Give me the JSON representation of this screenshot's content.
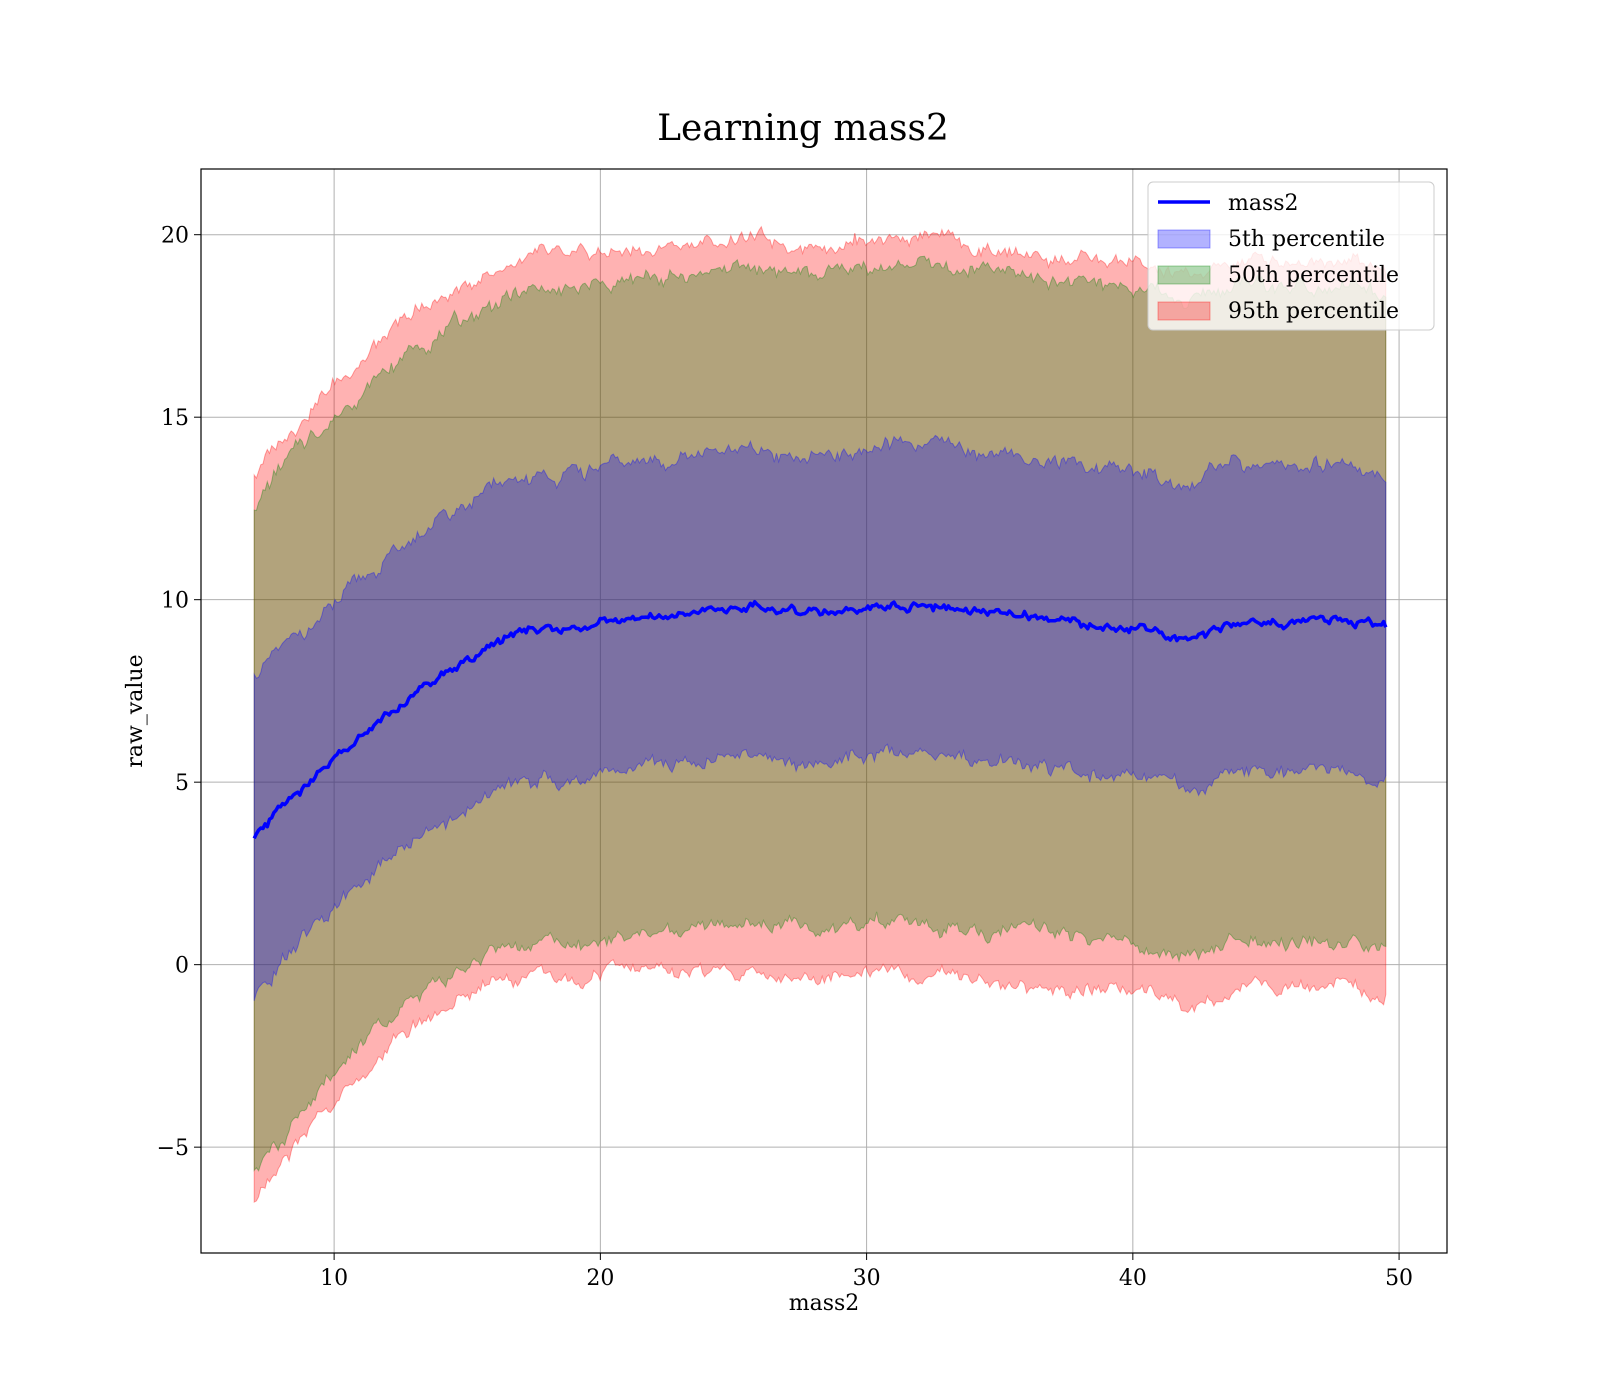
{
  "chart_data": {
    "type": "line",
    "title": "Learning mass2",
    "xlabel": "mass2",
    "ylabel": "raw_value",
    "xlim": [
      5,
      51.8
    ],
    "ylim": [
      -7.9,
      21.8
    ],
    "x_ticks": [
      10,
      20,
      30,
      40,
      50
    ],
    "x_tick_labels": [
      "10",
      "20",
      "30",
      "40",
      "50"
    ],
    "y_ticks": [
      -5,
      0,
      5,
      10,
      15,
      20
    ],
    "y_tick_labels": [
      "−5",
      "0",
      "5",
      "10",
      "15",
      "20"
    ],
    "grid": true,
    "legend_position": "top-right",
    "x_range": [
      7,
      49.5
    ],
    "series": [
      {
        "name": "mass2",
        "kind": "line",
        "color": "#0000ff",
        "x": [
          7,
          8,
          9,
          10,
          11,
          12,
          13,
          14,
          15,
          16,
          17,
          18,
          19,
          20,
          22,
          24,
          26,
          28,
          30,
          32,
          34,
          36,
          38,
          40,
          42,
          44,
          46,
          48,
          49.5
        ],
        "y": [
          3.5,
          4.3,
          5.0,
          5.6,
          6.3,
          6.9,
          7.4,
          7.9,
          8.4,
          8.8,
          9.1,
          9.2,
          9.1,
          9.4,
          9.6,
          9.7,
          9.8,
          9.6,
          9.8,
          9.9,
          9.7,
          9.6,
          9.4,
          9.3,
          8.9,
          9.4,
          9.4,
          9.5,
          9.2
        ]
      },
      {
        "name": "5th percentile",
        "kind": "band",
        "color": "#0000ff",
        "x": [
          7,
          8,
          9,
          10,
          11,
          12,
          13,
          14,
          15,
          16,
          17,
          18,
          19,
          20,
          22,
          24,
          26,
          28,
          30,
          32,
          34,
          36,
          38,
          40,
          42,
          44,
          46,
          48,
          49.5
        ],
        "lower": [
          -1.0,
          0.0,
          0.8,
          1.5,
          2.2,
          2.9,
          3.4,
          3.9,
          4.3,
          4.7,
          5.0,
          5.1,
          5.0,
          5.3,
          5.5,
          5.6,
          5.7,
          5.5,
          5.7,
          5.8,
          5.6,
          5.5,
          5.3,
          5.2,
          4.8,
          5.3,
          5.2,
          5.3,
          5.0
        ],
        "upper": [
          7.9,
          8.6,
          9.2,
          9.8,
          10.5,
          11.1,
          11.7,
          12.2,
          12.6,
          13.0,
          13.3,
          13.4,
          13.4,
          13.6,
          13.8,
          14.0,
          14.0,
          13.9,
          14.1,
          14.2,
          14.0,
          13.9,
          13.7,
          13.6,
          13.2,
          13.7,
          13.7,
          13.8,
          13.4
        ]
      },
      {
        "name": "50th percentile",
        "kind": "band",
        "color": "#008000",
        "x": [
          7,
          8,
          9,
          10,
          11,
          12,
          13,
          14,
          15,
          16,
          17,
          18,
          19,
          20,
          22,
          24,
          26,
          28,
          30,
          32,
          34,
          36,
          38,
          40,
          42,
          44,
          46,
          48,
          49.5
        ],
        "lower": [
          -5.8,
          -4.8,
          -3.8,
          -3.0,
          -2.2,
          -1.5,
          -0.9,
          -0.4,
          0.0,
          0.3,
          0.5,
          0.6,
          0.5,
          0.7,
          0.9,
          1.0,
          1.1,
          0.9,
          1.1,
          1.2,
          1.0,
          0.9,
          0.7,
          0.6,
          0.2,
          0.7,
          0.6,
          0.7,
          0.4
        ],
        "upper": [
          12.6,
          13.6,
          14.4,
          15.0,
          15.7,
          16.3,
          16.9,
          17.3,
          17.7,
          18.1,
          18.4,
          18.5,
          18.4,
          18.6,
          18.8,
          19.0,
          19.1,
          18.9,
          19.1,
          19.2,
          19.0,
          18.9,
          18.7,
          18.6,
          18.2,
          18.7,
          18.6,
          18.7,
          18.3
        ]
      },
      {
        "name": "95th percentile",
        "kind": "band",
        "color": "#ff0000",
        "x": [
          7,
          8,
          9,
          10,
          11,
          12,
          13,
          14,
          15,
          16,
          17,
          18,
          19,
          20,
          22,
          24,
          26,
          28,
          30,
          32,
          34,
          36,
          38,
          40,
          42,
          44,
          46,
          48,
          49.5
        ],
        "lower": [
          -6.5,
          -5.5,
          -4.5,
          -3.8,
          -3.0,
          -2.3,
          -1.7,
          -1.2,
          -0.8,
          -0.5,
          -0.3,
          -0.3,
          -0.4,
          -0.2,
          -0.1,
          -0.2,
          -0.3,
          -0.4,
          -0.1,
          -0.2,
          -0.4,
          -0.6,
          -0.7,
          -0.6,
          -1.1,
          -0.6,
          -0.5,
          -0.6,
          -0.9
        ],
        "upper": [
          13.4,
          14.4,
          15.2,
          15.9,
          16.6,
          17.2,
          17.8,
          18.2,
          18.6,
          19.0,
          19.3,
          19.4,
          19.3,
          19.5,
          19.6,
          19.8,
          19.9,
          19.7,
          19.9,
          20.0,
          19.6,
          19.4,
          19.3,
          19.2,
          18.8,
          19.3,
          19.3,
          19.4,
          19.0
        ]
      }
    ]
  }
}
